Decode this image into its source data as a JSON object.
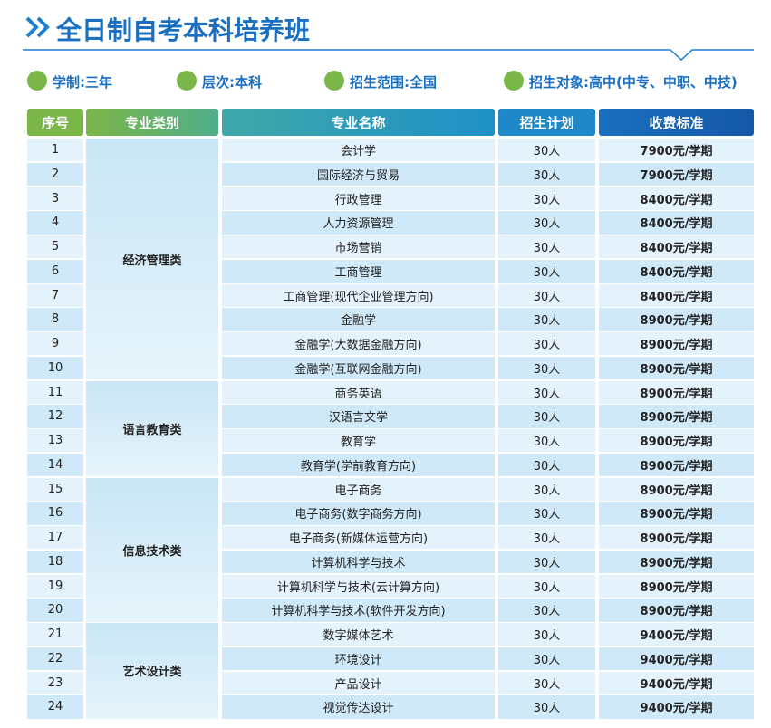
{
  "header": {
    "title": "全日制自考本科培养班"
  },
  "info": [
    "学制:三年",
    "层次:本科",
    "招生范围:全国",
    "招生对象:高中(中专、中职、中技)"
  ],
  "table": {
    "columns": [
      "序号",
      "专业类别",
      "专业名称",
      "招生计划",
      "收费标准"
    ],
    "groups": [
      {
        "category": "经济管理类",
        "rows": [
          [
            "1",
            "会计学",
            "30人",
            "7900元/学期"
          ],
          [
            "2",
            "国际经济与贸易",
            "30人",
            "7900元/学期"
          ],
          [
            "3",
            "行政管理",
            "30人",
            "8400元/学期"
          ],
          [
            "4",
            "人力资源管理",
            "30人",
            "8400元/学期"
          ],
          [
            "5",
            "市场营销",
            "30人",
            "8400元/学期"
          ],
          [
            "6",
            "工商管理",
            "30人",
            "8400元/学期"
          ],
          [
            "7",
            "工商管理(现代企业管理方向)",
            "30人",
            "8400元/学期"
          ],
          [
            "8",
            "金融学",
            "30人",
            "8900元/学期"
          ],
          [
            "9",
            "金融学(大数据金融方向)",
            "30人",
            "8900元/学期"
          ],
          [
            "10",
            "金融学(互联网金融方向)",
            "30人",
            "8900元/学期"
          ]
        ]
      },
      {
        "category": "语言教育类",
        "rows": [
          [
            "11",
            "商务英语",
            "30人",
            "8900元/学期"
          ],
          [
            "12",
            "汉语言文学",
            "30人",
            "8900元/学期"
          ],
          [
            "13",
            "教育学",
            "30人",
            "8900元/学期"
          ],
          [
            "14",
            "教育学(学前教育方向)",
            "30人",
            "8900元/学期"
          ]
        ]
      },
      {
        "category": "信息技术类",
        "rows": [
          [
            "15",
            "电子商务",
            "30人",
            "8900元/学期"
          ],
          [
            "16",
            "电子商务(数字商务方向)",
            "30人",
            "8900元/学期"
          ],
          [
            "17",
            "电子商务(新媒体运营方向)",
            "30人",
            "8900元/学期"
          ],
          [
            "18",
            "计算机科学与技术",
            "30人",
            "8900元/学期"
          ],
          [
            "19",
            "计算机科学与技术(云计算方向)",
            "30人",
            "8900元/学期"
          ],
          [
            "20",
            "计算机科学与技术(软件开发方向)",
            "30人",
            "8900元/学期"
          ]
        ]
      },
      {
        "category": "艺术设计类",
        "rows": [
          [
            "21",
            "数字媒体艺术",
            "30人",
            "9400元/学期"
          ],
          [
            "22",
            "环境设计",
            "30人",
            "9400元/学期"
          ],
          [
            "23",
            "产品设计",
            "30人",
            "9400元/学期"
          ],
          [
            "24",
            "视觉传达设计",
            "30人",
            "9400元/学期"
          ]
        ]
      }
    ]
  }
}
